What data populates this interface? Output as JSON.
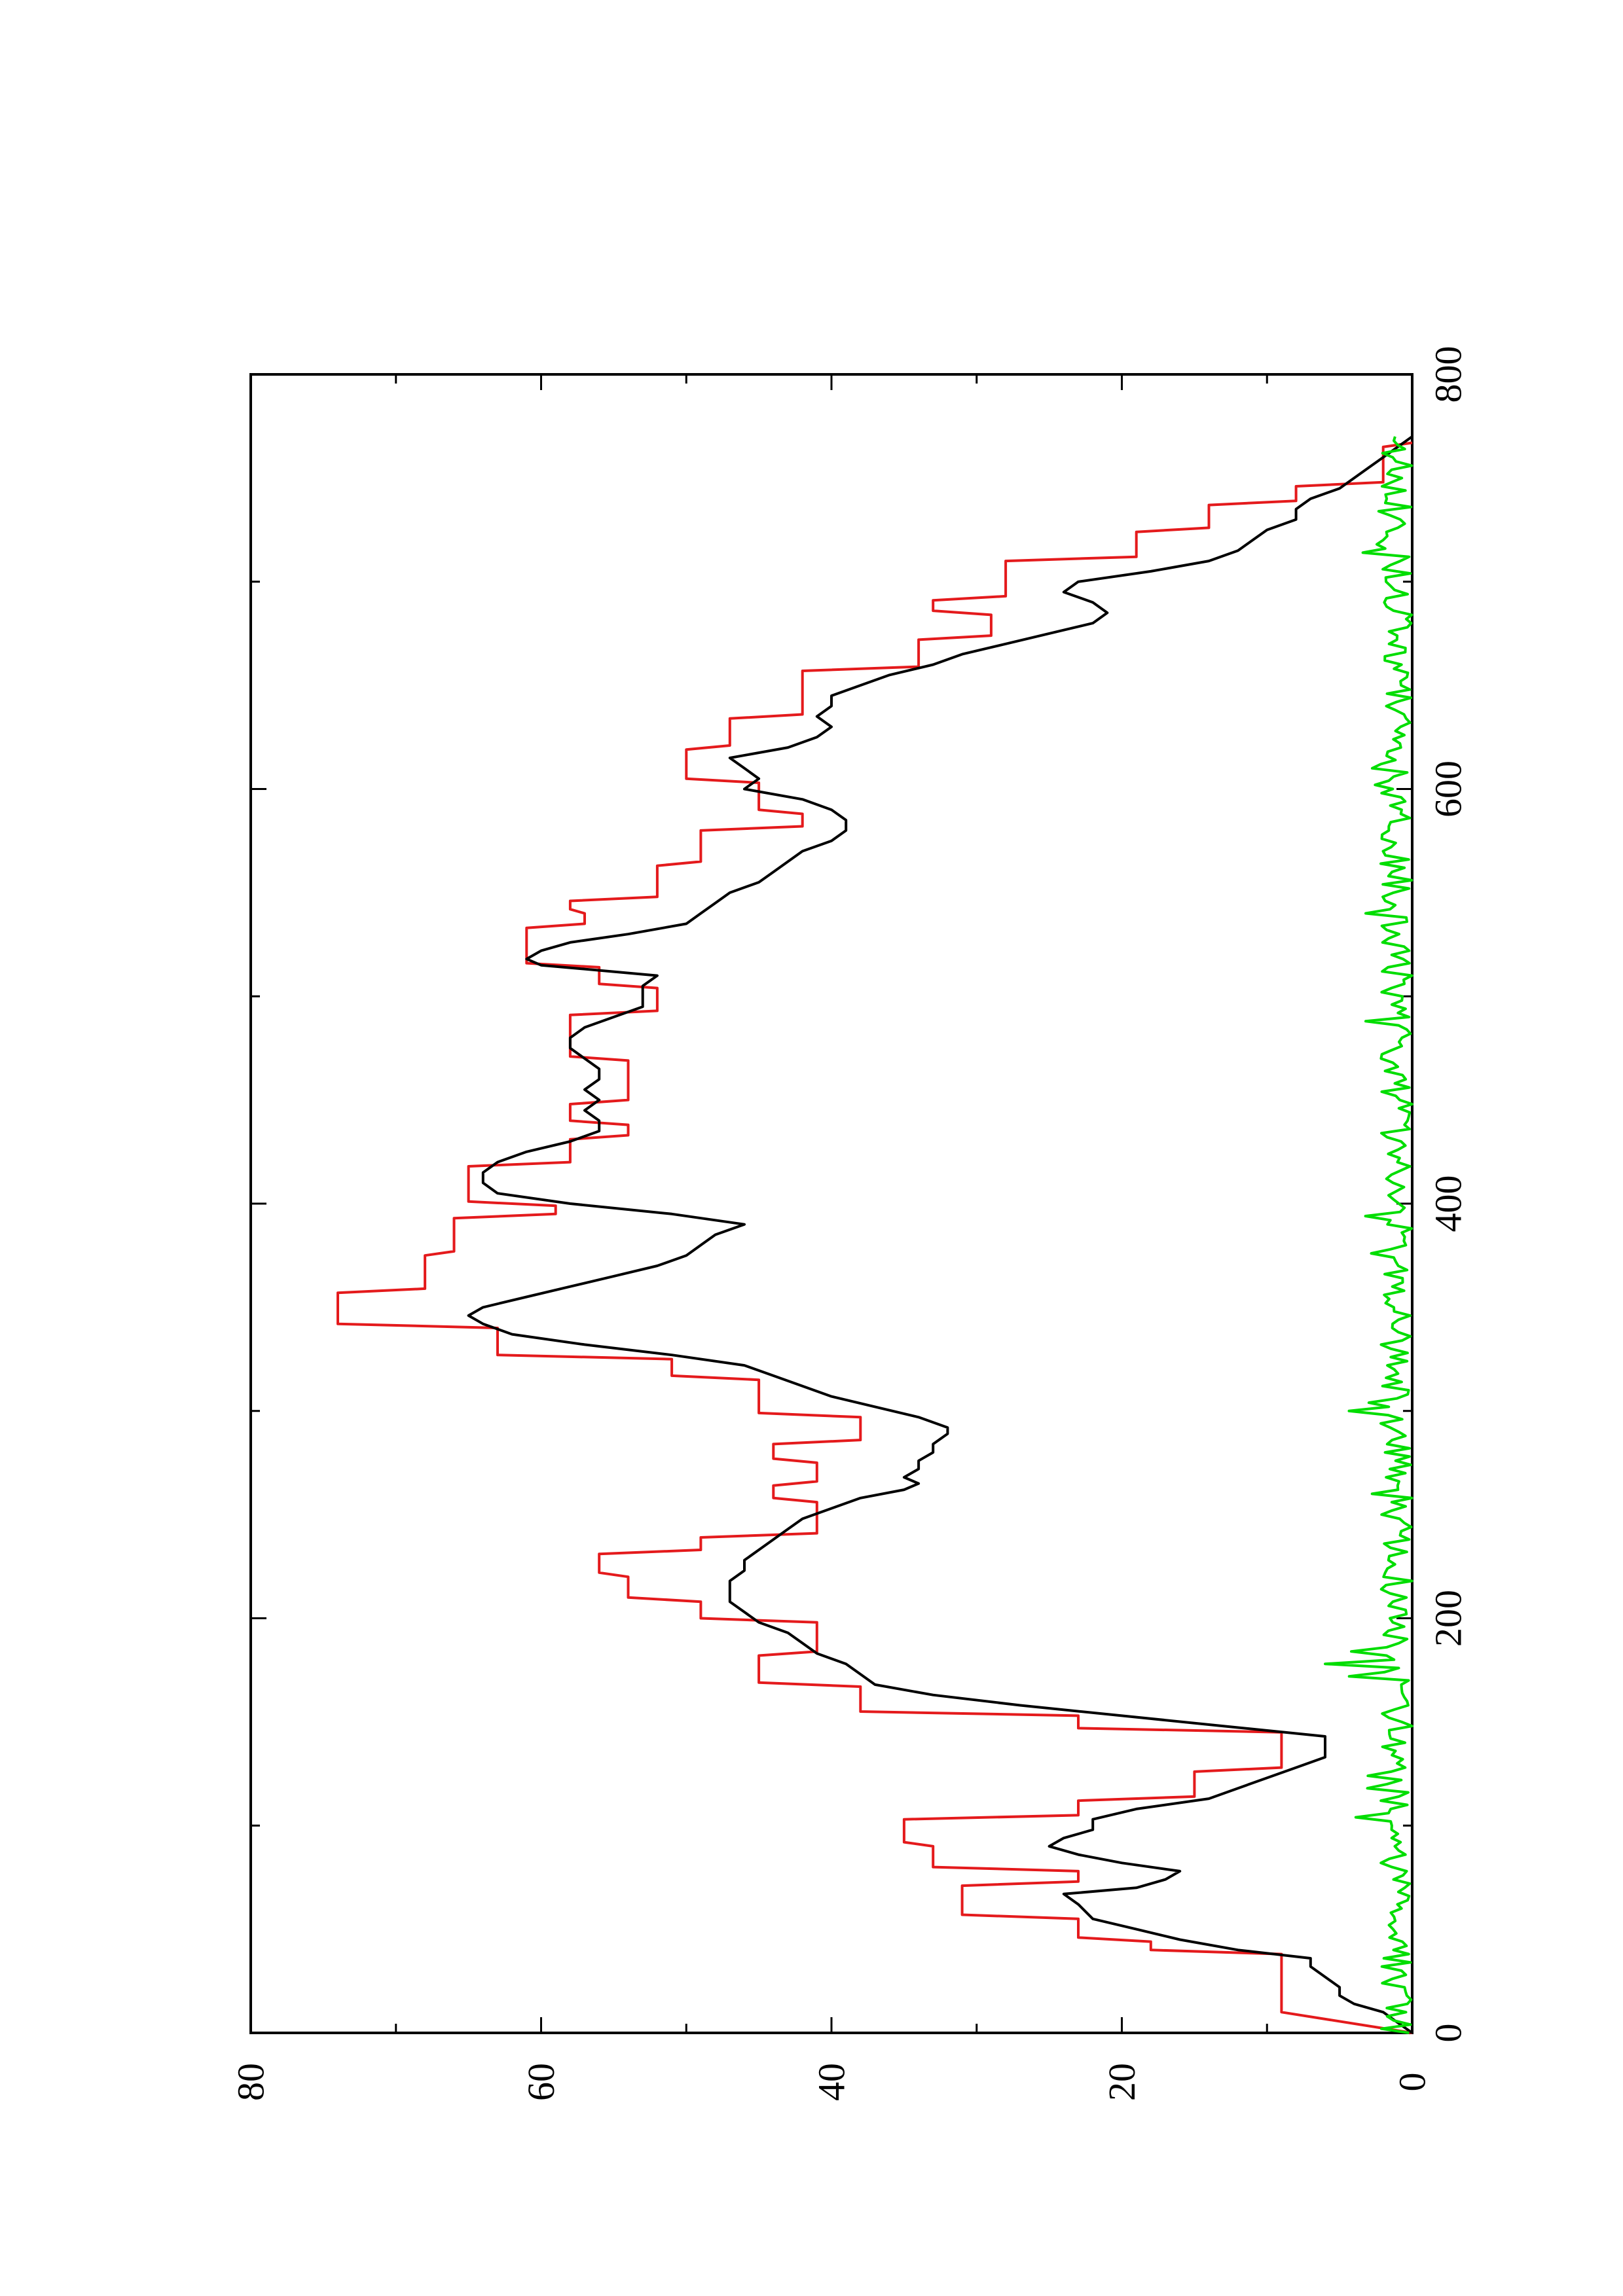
{
  "chart_data": {
    "type": "line",
    "orientation": "page rotated 90 degrees counter-clockwise",
    "title": "",
    "xlabel": "",
    "ylabel": "",
    "xlim": [
      0,
      800
    ],
    "ylim": [
      0,
      80
    ],
    "x_ticks": [
      "0",
      "200",
      "400",
      "600",
      "800"
    ],
    "y_ticks": [
      "0",
      "20",
      "40",
      "60",
      "80"
    ],
    "grid": false,
    "legend": "none",
    "series": [
      {
        "color": "#e41a1c",
        "style": "step",
        "points": [
          [
            0,
            0
          ],
          [
            10,
            9
          ],
          [
            38,
            9
          ],
          [
            40,
            18
          ],
          [
            44,
            18
          ],
          [
            46,
            23
          ],
          [
            55,
            23
          ],
          [
            57,
            31
          ],
          [
            71,
            31
          ],
          [
            73,
            23
          ],
          [
            78,
            23
          ],
          [
            80,
            33
          ],
          [
            90,
            33
          ],
          [
            92,
            35
          ],
          [
            103,
            35
          ],
          [
            105,
            23
          ],
          [
            112,
            23
          ],
          [
            114,
            15
          ],
          [
            126,
            15
          ],
          [
            128,
            9
          ],
          [
            145,
            9
          ],
          [
            147,
            23
          ],
          [
            153,
            23
          ],
          [
            155,
            38
          ],
          [
            167,
            38
          ],
          [
            169,
            45
          ],
          [
            182,
            45
          ],
          [
            184,
            41
          ],
          [
            198,
            41
          ],
          [
            200,
            49
          ],
          [
            208,
            49
          ],
          [
            210,
            54
          ],
          [
            220,
            54
          ],
          [
            222,
            56
          ],
          [
            231,
            56
          ],
          [
            233,
            49
          ],
          [
            239,
            49
          ],
          [
            241,
            41
          ],
          [
            256,
            41
          ],
          [
            258,
            44
          ],
          [
            264,
            44
          ],
          [
            266,
            41
          ],
          [
            275,
            41
          ],
          [
            277,
            44
          ],
          [
            284,
            44
          ],
          [
            286,
            38
          ],
          [
            297,
            38
          ],
          [
            299,
            45
          ],
          [
            315,
            45
          ],
          [
            317,
            51
          ],
          [
            325,
            51
          ],
          [
            327,
            63
          ],
          [
            340,
            63
          ],
          [
            342,
            74
          ],
          [
            357,
            74
          ],
          [
            359,
            68
          ],
          [
            375,
            68
          ],
          [
            377,
            66
          ],
          [
            393,
            66
          ],
          [
            395,
            59
          ],
          [
            399,
            59
          ],
          [
            401,
            65
          ],
          [
            418,
            65
          ],
          [
            420,
            58
          ],
          [
            431,
            58
          ],
          [
            433,
            54
          ],
          [
            438,
            54
          ],
          [
            440,
            58
          ],
          [
            448,
            58
          ],
          [
            450,
            54
          ],
          [
            469,
            54
          ],
          [
            471,
            58
          ],
          [
            491,
            58
          ],
          [
            493,
            52
          ],
          [
            504,
            52
          ],
          [
            506,
            56
          ],
          [
            514,
            56
          ],
          [
            516,
            61
          ],
          [
            533,
            61
          ],
          [
            535,
            57
          ],
          [
            540,
            57
          ],
          [
            542,
            58
          ],
          [
            546,
            58
          ],
          [
            548,
            52
          ],
          [
            563,
            52
          ],
          [
            565,
            49
          ],
          [
            580,
            49
          ],
          [
            582,
            42
          ],
          [
            588,
            42
          ],
          [
            590,
            45
          ],
          [
            603,
            45
          ],
          [
            605,
            50
          ],
          [
            619,
            50
          ],
          [
            621,
            47
          ],
          [
            634,
            47
          ],
          [
            636,
            42
          ],
          [
            657,
            42
          ],
          [
            659,
            34
          ],
          [
            672,
            34
          ],
          [
            674,
            29
          ],
          [
            684,
            29
          ],
          [
            686,
            33
          ],
          [
            691,
            33
          ],
          [
            693,
            28
          ],
          [
            710,
            28
          ],
          [
            712,
            19
          ],
          [
            724,
            19
          ],
          [
            726,
            14
          ],
          [
            737,
            14
          ],
          [
            739,
            8
          ],
          [
            746,
            8
          ],
          [
            748,
            2
          ],
          [
            765,
            2
          ],
          [
            767,
            0
          ]
        ]
      },
      {
        "color": "#000000",
        "style": "line",
        "points": [
          [
            0,
            0
          ],
          [
            5,
            1
          ],
          [
            10,
            2
          ],
          [
            14,
            4
          ],
          [
            18,
            5
          ],
          [
            22,
            5
          ],
          [
            27,
            6
          ],
          [
            32,
            7
          ],
          [
            36,
            7
          ],
          [
            40,
            12
          ],
          [
            45,
            16
          ],
          [
            50,
            19
          ],
          [
            55,
            22
          ],
          [
            62,
            23
          ],
          [
            67,
            24
          ],
          [
            70,
            19
          ],
          [
            74,
            17
          ],
          [
            78,
            16
          ],
          [
            82,
            20
          ],
          [
            86,
            23
          ],
          [
            90,
            25
          ],
          [
            94,
            24
          ],
          [
            98,
            22
          ],
          [
            103,
            22
          ],
          [
            108,
            19
          ],
          [
            113,
            14
          ],
          [
            118,
            12
          ],
          [
            123,
            10
          ],
          [
            128,
            8
          ],
          [
            133,
            6
          ],
          [
            138,
            6
          ],
          [
            143,
            6
          ],
          [
            148,
            13
          ],
          [
            153,
            20
          ],
          [
            158,
            27
          ],
          [
            163,
            33
          ],
          [
            168,
            37
          ],
          [
            173,
            38
          ],
          [
            178,
            39
          ],
          [
            183,
            41
          ],
          [
            188,
            42
          ],
          [
            193,
            43
          ],
          [
            198,
            45
          ],
          [
            203,
            46
          ],
          [
            208,
            47
          ],
          [
            213,
            47
          ],
          [
            218,
            47
          ],
          [
            223,
            46
          ],
          [
            228,
            46
          ],
          [
            233,
            45
          ],
          [
            238,
            44
          ],
          [
            243,
            43
          ],
          [
            248,
            42
          ],
          [
            253,
            40
          ],
          [
            258,
            38
          ],
          [
            262,
            35
          ],
          [
            265,
            34
          ],
          [
            268,
            35
          ],
          [
            272,
            34
          ],
          [
            276,
            34
          ],
          [
            280,
            33
          ],
          [
            284,
            33
          ],
          [
            289,
            32
          ],
          [
            292,
            32
          ],
          [
            297,
            34
          ],
          [
            302,
            37
          ],
          [
            307,
            40
          ],
          [
            312,
            42
          ],
          [
            317,
            44
          ],
          [
            322,
            46
          ],
          [
            327,
            51
          ],
          [
            332,
            57
          ],
          [
            337,
            62
          ],
          [
            342,
            64
          ],
          [
            346,
            65
          ],
          [
            350,
            64
          ],
          [
            355,
            61
          ],
          [
            360,
            58
          ],
          [
            365,
            55
          ],
          [
            370,
            52
          ],
          [
            375,
            50
          ],
          [
            380,
            49
          ],
          [
            385,
            48
          ],
          [
            390,
            46
          ],
          [
            395,
            51
          ],
          [
            400,
            58
          ],
          [
            405,
            63
          ],
          [
            410,
            64
          ],
          [
            415,
            64
          ],
          [
            420,
            63
          ],
          [
            425,
            61
          ],
          [
            430,
            58
          ],
          [
            435,
            56
          ],
          [
            440,
            56
          ],
          [
            445,
            57
          ],
          [
            450,
            56
          ],
          [
            455,
            57
          ],
          [
            460,
            56
          ],
          [
            465,
            56
          ],
          [
            470,
            57
          ],
          [
            475,
            58
          ],
          [
            480,
            58
          ],
          [
            485,
            57
          ],
          [
            490,
            55
          ],
          [
            495,
            53
          ],
          [
            500,
            53
          ],
          [
            505,
            53
          ],
          [
            510,
            52
          ],
          [
            515,
            60
          ],
          [
            518,
            61
          ],
          [
            522,
            60
          ],
          [
            526,
            58
          ],
          [
            530,
            54
          ],
          [
            535,
            50
          ],
          [
            540,
            49
          ],
          [
            545,
            48
          ],
          [
            550,
            47
          ],
          [
            555,
            45
          ],
          [
            560,
            44
          ],
          [
            565,
            43
          ],
          [
            570,
            42
          ],
          [
            575,
            40
          ],
          [
            580,
            39
          ],
          [
            585,
            39
          ],
          [
            590,
            40
          ],
          [
            595,
            42
          ],
          [
            600,
            46
          ],
          [
            605,
            45
          ],
          [
            610,
            46
          ],
          [
            615,
            47
          ],
          [
            620,
            43
          ],
          [
            625,
            41
          ],
          [
            630,
            40
          ],
          [
            635,
            41
          ],
          [
            640,
            40
          ],
          [
            645,
            40
          ],
          [
            650,
            38
          ],
          [
            655,
            36
          ],
          [
            660,
            33
          ],
          [
            665,
            31
          ],
          [
            670,
            28
          ],
          [
            675,
            25
          ],
          [
            680,
            22
          ],
          [
            685,
            21
          ],
          [
            690,
            22
          ],
          [
            695,
            24
          ],
          [
            700,
            23
          ],
          [
            705,
            18
          ],
          [
            710,
            14
          ],
          [
            715,
            12
          ],
          [
            720,
            11
          ],
          [
            725,
            10
          ],
          [
            730,
            8
          ],
          [
            735,
            8
          ],
          [
            740,
            7
          ],
          [
            745,
            5
          ],
          [
            750,
            4
          ],
          [
            755,
            3
          ],
          [
            760,
            2
          ],
          [
            765,
            1
          ],
          [
            770,
            0
          ]
        ]
      },
      {
        "color": "#00dd00",
        "style": "line",
        "points": "noise"
      }
    ]
  }
}
